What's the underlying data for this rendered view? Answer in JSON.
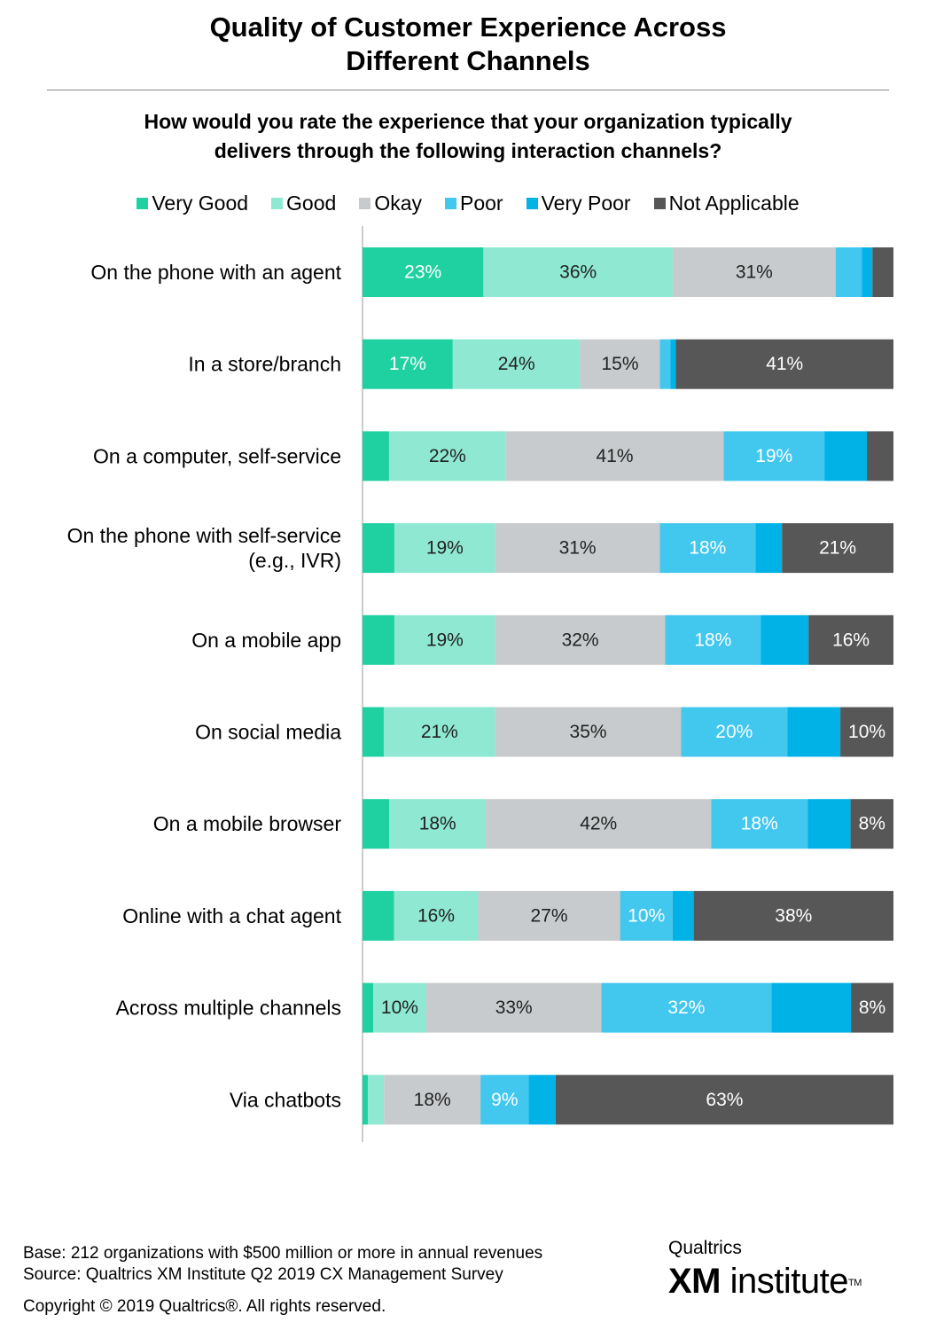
{
  "header": {
    "title_line1": "Quality of Customer Experience Across",
    "title_line2": "Different Channels",
    "question_line1": "How would you rate the experience that your organization typically",
    "question_line2": "delivers through the following interaction channels?"
  },
  "legend": [
    {
      "label": "Very Good",
      "color": "#1fd1a1"
    },
    {
      "label": "Good",
      "color": "#8fe8d1"
    },
    {
      "label": "Okay",
      "color": "#c8cbcd"
    },
    {
      "label": "Poor",
      "color": "#42c7ef"
    },
    {
      "label": "Very Poor",
      "color": "#00b2e6"
    },
    {
      "label": "Not Applicable",
      "color": "#575757"
    }
  ],
  "chart_data": {
    "type": "bar",
    "orientation": "horizontal",
    "stacked": true,
    "unit": "%",
    "categories": [
      "On the phone with an agent",
      "In a store/branch",
      "On a computer, self-service",
      "On the phone with self-service (e.g., IVR)",
      "On a mobile app",
      "On social media",
      "On a mobile browser",
      "Online with a chat agent",
      "Across multiple channels",
      "Via chatbots"
    ],
    "category_lines": [
      [
        "On the phone with an agent"
      ],
      [
        "In a store/branch"
      ],
      [
        "On a computer, self-service"
      ],
      [
        "On the phone with self-service",
        "(e.g., IVR)"
      ],
      [
        "On a mobile app"
      ],
      [
        "On social media"
      ],
      [
        "On a mobile browser"
      ],
      [
        "Online with a chat agent"
      ],
      [
        "Across multiple channels"
      ],
      [
        "Via chatbots"
      ]
    ],
    "series": [
      {
        "name": "Very Good",
        "values": [
          23,
          17,
          5,
          6,
          6,
          4,
          5,
          6,
          2,
          1
        ]
      },
      {
        "name": "Good",
        "values": [
          36,
          24,
          22,
          19,
          19,
          21,
          18,
          16,
          10,
          3
        ]
      },
      {
        "name": "Okay",
        "values": [
          31,
          15,
          41,
          31,
          32,
          35,
          42,
          27,
          33,
          18
        ]
      },
      {
        "name": "Poor",
        "values": [
          5,
          2,
          19,
          18,
          18,
          20,
          18,
          10,
          32,
          9
        ]
      },
      {
        "name": "Very Poor",
        "values": [
          2,
          1,
          8,
          5,
          9,
          10,
          8,
          4,
          15,
          5
        ]
      },
      {
        "name": "Not Applicable",
        "values": [
          4,
          41,
          5,
          21,
          16,
          10,
          8,
          38,
          8,
          63
        ]
      }
    ],
    "data_labels": [
      [
        "23%",
        "36%",
        "31%",
        "",
        "",
        ""
      ],
      [
        "17%",
        "24%",
        "15%",
        "",
        "",
        "41%"
      ],
      [
        "",
        "22%",
        "41%",
        "19%",
        "",
        ""
      ],
      [
        "",
        "19%",
        "31%",
        "18%",
        "",
        "21%"
      ],
      [
        "",
        "19%",
        "32%",
        "18%",
        "",
        "16%"
      ],
      [
        "",
        "21%",
        "35%",
        "20%",
        "",
        "10%"
      ],
      [
        "",
        "18%",
        "42%",
        "18%",
        "",
        "8%"
      ],
      [
        "",
        "16%",
        "27%",
        "10%",
        "",
        "38%"
      ],
      [
        "",
        "10%",
        "33%",
        "32%",
        "",
        "8%"
      ],
      [
        "",
        "",
        "18%",
        "9%",
        "",
        "63%"
      ]
    ],
    "label_colors": [
      "#ffffff",
      "#222222",
      "#222222",
      "#ffffff",
      "#ffffff",
      "#ffffff"
    ],
    "xlim": [
      0,
      100
    ]
  },
  "footer": {
    "base": "Base: 212 organizations with $500 million or more in annual revenues",
    "source": "Source: Qualtrics XM Institute Q2 2019 CX Management Survey",
    "copyright": "Copyright © 2019 Qualtrics®.  All rights reserved."
  },
  "brand": {
    "company": "Qualtrics",
    "xm": "XM",
    "institute": "institute",
    "tm": "TM"
  }
}
